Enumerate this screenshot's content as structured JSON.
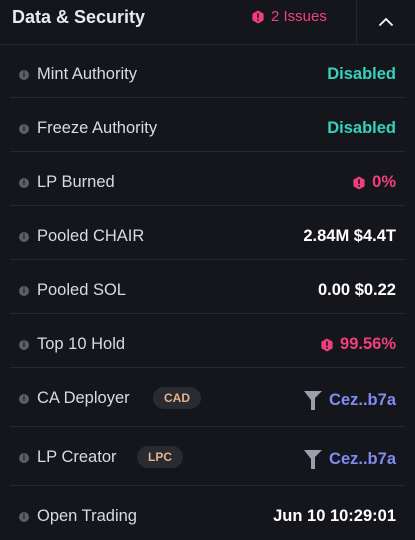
{
  "header": {
    "title": "Data & Security",
    "issues_label": "2 Issues",
    "toggle_icon": "chevron-up-icon"
  },
  "colors": {
    "background": "#15161c",
    "divider": "#262830",
    "green": "#35d3bd",
    "pink": "#f0407a",
    "link": "#7f8cf0",
    "badge_text": "#e3b48a"
  },
  "rows": {
    "mint_authority": {
      "label": "Mint Authority",
      "value": "Disabled"
    },
    "freeze_authority": {
      "label": "Freeze Authority",
      "value": "Disabled"
    },
    "lp_burned": {
      "label": "LP Burned",
      "value": "0%"
    },
    "pooled_chair": {
      "label": "Pooled CHAIR",
      "value": "2.84M $4.4T"
    },
    "pooled_sol": {
      "label": "Pooled SOL",
      "value": "0.00 $0.22"
    },
    "top10_hold": {
      "label": "Top 10 Hold",
      "value": "99.56%"
    },
    "ca_deployer": {
      "label": "CA Deployer",
      "badge": "CAD",
      "value": "Cez..b7a"
    },
    "lp_creator": {
      "label": "LP Creator",
      "badge": "LPC",
      "value": "Cez..b7a"
    },
    "open_trading": {
      "label": "Open Trading",
      "value": "Jun 10 10:29:01"
    }
  }
}
